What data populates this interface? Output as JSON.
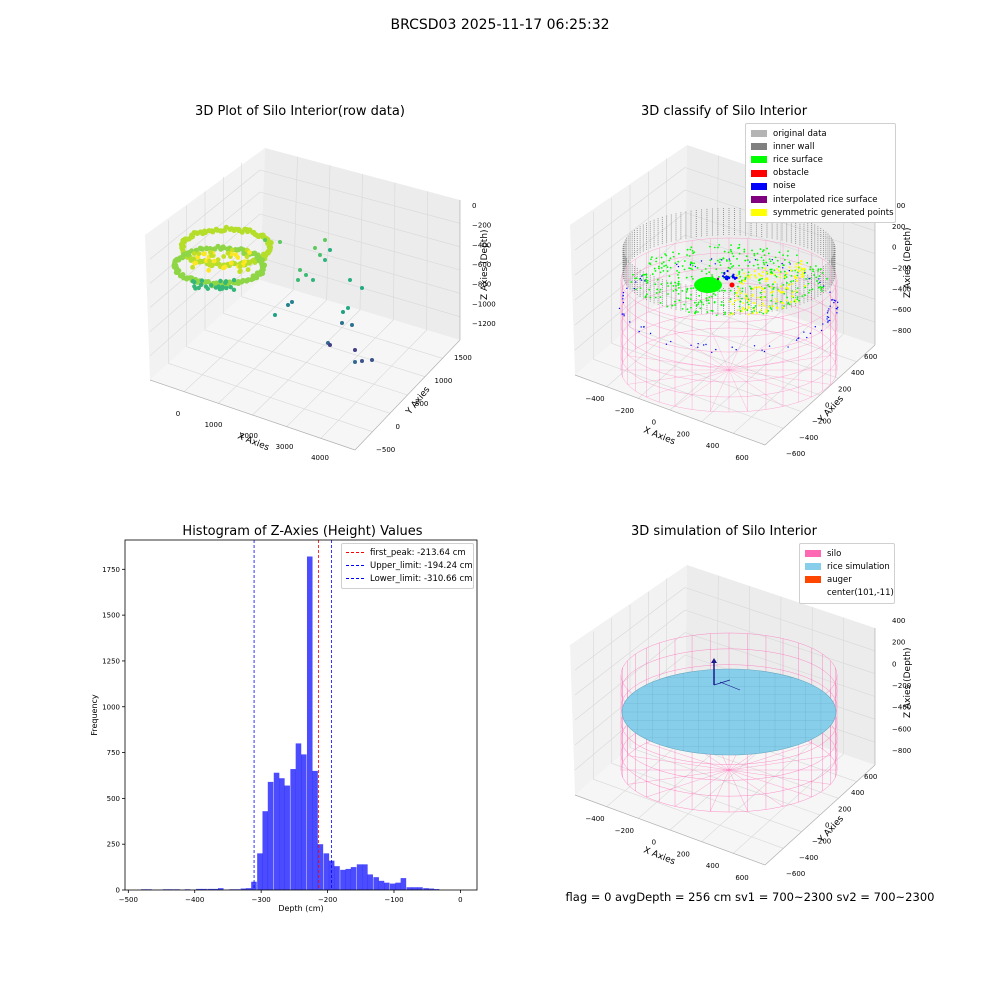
{
  "suptitle": "BRCSD03 2025-11-17 06:25:32",
  "footer": "flag = 0     avgDepth = 256 cm  sv1 = 700~2300  sv2 = 700~2300",
  "panels": {
    "raw": {
      "title": "3D Plot of Silo Interior(row data)",
      "xlabel": "X Axies",
      "ylabel": "Y Axies",
      "zlabel": "Z Axies (Depth)",
      "xticks": [
        "0",
        "1000",
        "2000",
        "3000",
        "4000"
      ],
      "yticks": [
        "1500",
        "1000",
        "500",
        "0",
        "−500"
      ],
      "zticks": [
        "0",
        "−200",
        "−400",
        "−600",
        "−800",
        "−1000",
        "−1200"
      ]
    },
    "classify": {
      "title": "3D classify of Silo Interior",
      "xlabel": "X Axies",
      "ylabel": "Y Axies",
      "zlabel": "Z Axies (Depth)",
      "xticks": [
        "−400",
        "−200",
        "0",
        "200",
        "400",
        "600"
      ],
      "yticks": [
        "600",
        "400",
        "200",
        "0",
        "−200",
        "−400",
        "−600"
      ],
      "zticks": [
        "400",
        "200",
        "0",
        "−200",
        "−400",
        "−600",
        "−800"
      ],
      "legend": [
        {
          "label": "original data",
          "color": "#b4b4b4"
        },
        {
          "label": "inner wall",
          "color": "#808080"
        },
        {
          "label": "rice surface",
          "color": "#00ff00"
        },
        {
          "label": "obstacle",
          "color": "#ff0000"
        },
        {
          "label": "noise",
          "color": "#0000ff"
        },
        {
          "label": "interpolated rice surface",
          "color": "#800080"
        },
        {
          "label": "symmetric generated points",
          "color": "#ffff00"
        }
      ]
    },
    "simulation": {
      "title": "3D simulation of Silo Interior",
      "xlabel": "X Axies",
      "ylabel": "Y Axies",
      "zlabel": "Z Axies (Depth)",
      "xticks": [
        "−400",
        "−200",
        "0",
        "200",
        "400",
        "600"
      ],
      "yticks": [
        "600",
        "400",
        "200",
        "0",
        "−200",
        "−400",
        "−600"
      ],
      "zticks": [
        "400",
        "200",
        "0",
        "−200",
        "−400",
        "−600",
        "−800"
      ],
      "legend": [
        {
          "label": "silo",
          "color": "#ff69b4"
        },
        {
          "label": "rice simulation",
          "color": "#87ceeb"
        },
        {
          "label": "auger",
          "color": "#ff4500"
        },
        {
          "label": "center(101,-11)",
          "color": ""
        }
      ]
    }
  },
  "chart_data": [
    {
      "type": "histogram",
      "title": "Histogram of Z-Axies (Height) Values",
      "xlabel": "Depth (cm)",
      "ylabel": "Frequency",
      "bar_color": "#0000ff",
      "xlim": [
        -505,
        25
      ],
      "ylim": [
        0,
        1910
      ],
      "xticks": [
        -500,
        -400,
        -300,
        -200,
        -100,
        0
      ],
      "yticks": [
        0,
        250,
        500,
        750,
        1000,
        1250,
        1500,
        1750
      ],
      "bin_width": 8.36,
      "bin_starts": [
        -481,
        -473,
        -465,
        -456,
        -448,
        -440,
        -431,
        -423,
        -415,
        -406,
        -398,
        -390,
        -381,
        -373,
        -365,
        -356,
        -348,
        -340,
        -331,
        -323,
        -315,
        -306,
        -298,
        -290,
        -281,
        -273,
        -265,
        -256,
        -248,
        -240,
        -231,
        -223,
        -215,
        -206,
        -198,
        -190,
        -181,
        -173,
        -165,
        -156,
        -148,
        -140,
        -131,
        -123,
        -115,
        -106,
        -98,
        -90,
        -81,
        -73,
        -65,
        -56,
        -48,
        -40,
        -31,
        -23,
        -15,
        -6
      ],
      "values": [
        4,
        4,
        1,
        1,
        4,
        4,
        4,
        1,
        4,
        1,
        6,
        6,
        6,
        6,
        10,
        1,
        4,
        4,
        8,
        10,
        45,
        200,
        430,
        590,
        640,
        610,
        570,
        660,
        800,
        740,
        1820,
        650,
        250,
        200,
        160,
        130,
        110,
        115,
        125,
        140,
        140,
        85,
        70,
        50,
        40,
        35,
        40,
        65,
        15,
        15,
        15,
        10,
        8,
        5,
        0,
        0,
        0,
        0
      ],
      "lines": [
        {
          "label": "first_peak: -213.64 cm",
          "x": -213.64,
          "color": "#ff0000"
        },
        {
          "label": "Upper_limit: -194.24 cm",
          "x": -194.24,
          "color": "#0000ff"
        },
        {
          "label": "Lower_limit: -310.66 cm",
          "x": -310.66,
          "color": "#0000ff"
        }
      ]
    },
    {
      "type": "scatter",
      "title": "3D Plot of Silo Interior(row data)",
      "xlabel": "X Axies",
      "ylabel": "Y Axies",
      "zlabel": "Z Axies (Depth)",
      "xlim": [
        -500,
        4300
      ],
      "ylim": [
        -600,
        1600
      ],
      "zlim": [
        -1300,
        50
      ]
    },
    {
      "type": "scatter",
      "title": "3D classify of Silo Interior",
      "xlabel": "X Axies",
      "ylabel": "Y Axies",
      "zlabel": "Z Axies (Depth)",
      "xlim": [
        -500,
        700
      ],
      "ylim": [
        -650,
        650
      ],
      "zlim": [
        -900,
        450
      ]
    },
    {
      "type": "surface",
      "title": "3D simulation of Silo Interior",
      "xlabel": "X Axies",
      "ylabel": "Y Axies",
      "zlabel": "Z Axies (Depth)",
      "xlim": [
        -500,
        700
      ],
      "ylim": [
        -650,
        650
      ],
      "zlim": [
        -900,
        450
      ]
    }
  ]
}
